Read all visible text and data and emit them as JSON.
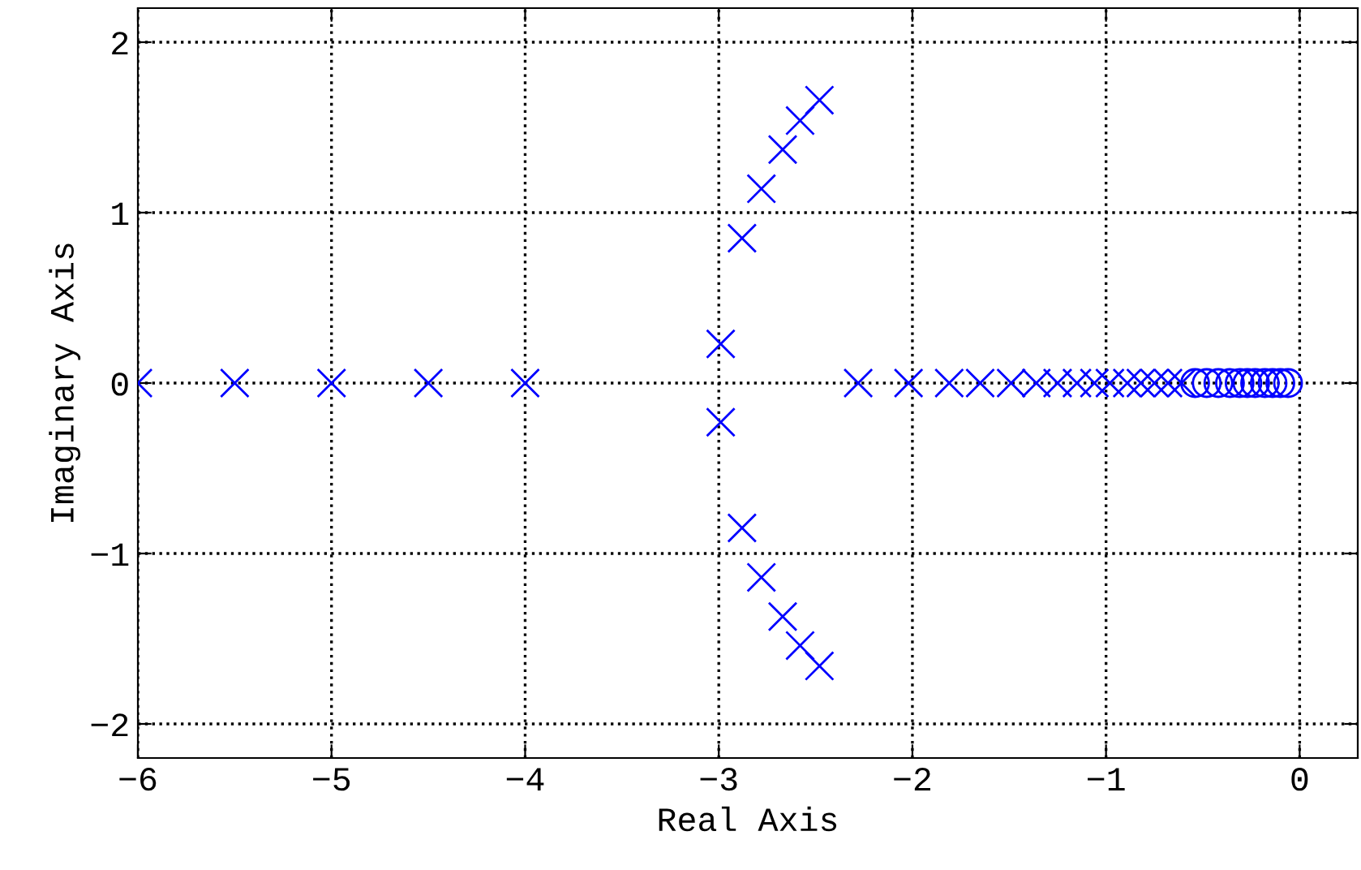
{
  "chart_data": {
    "type": "scatter",
    "xlabel": "Real Axis",
    "ylabel": "Imaginary Axis",
    "series": [
      {
        "color": "#0000ff",
        "marker": "cross",
        "x": [
          -6,
          -5.5,
          -5,
          -4.5,
          -4,
          -2.99,
          -2.99,
          -2.88,
          -2.88,
          -2.78,
          -2.78,
          -2.67,
          -2.67,
          -2.58,
          -2.58,
          -2.48,
          -2.48,
          -2.28,
          -2.02,
          -1.81,
          -1.65,
          -1.49,
          -1.36,
          -1.25,
          -1.15,
          -1.06,
          -0.98,
          -0.89,
          -0.82,
          -0.75,
          -0.68,
          -0.61
        ],
        "values": [
          0,
          0,
          0,
          0,
          0,
          0.23,
          -0.23,
          0.85,
          -0.85,
          1.14,
          -1.14,
          1.37,
          -1.37,
          1.54,
          -1.54,
          1.66,
          -1.66,
          0,
          0,
          0,
          0,
          0,
          0,
          0,
          0,
          0,
          0,
          0,
          0,
          0,
          0,
          0
        ]
      },
      {
        "color": "#0000ff",
        "marker": "circle",
        "x": [
          -0.54,
          -0.48,
          -0.42,
          -0.36,
          -0.31,
          -0.27,
          -0.23,
          -0.18,
          -0.14,
          -0.1,
          -0.06
        ],
        "values": [
          0,
          0,
          0,
          0,
          0,
          0,
          0,
          0,
          0,
          0,
          0
        ]
      }
    ],
    "xlim": [
      -6,
      0.3
    ],
    "ylim": [
      -2.2,
      2.2
    ],
    "xticks": [
      -6,
      -5,
      -4,
      -3,
      -2,
      -1,
      0
    ],
    "yticks": [
      -2,
      -1,
      0,
      1,
      2
    ],
    "grid": true,
    "line_style": "dotted"
  }
}
